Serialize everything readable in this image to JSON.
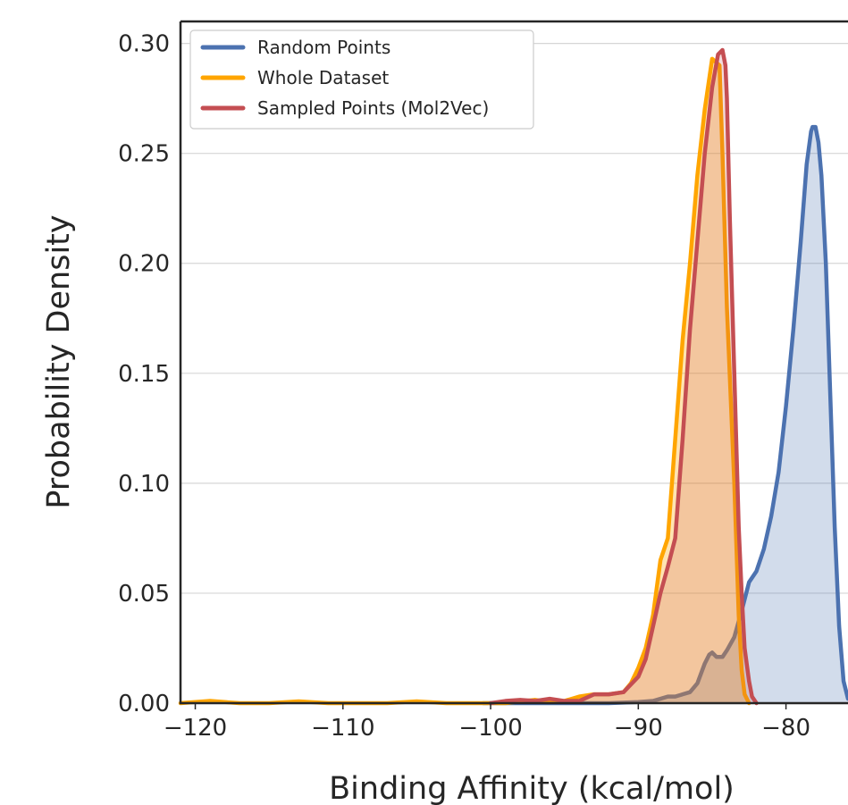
{
  "chart_data": {
    "type": "area",
    "xlabel": "Binding Affinity (kcal/mol)",
    "ylabel": "Probability Density",
    "xlim": [
      -121,
      -75.8
    ],
    "ylim": [
      0,
      0.31
    ],
    "xticks": [
      -120,
      -110,
      -100,
      -90,
      -80
    ],
    "xtick_labels": [
      "−120",
      "−110",
      "−100",
      "−90",
      "−80"
    ],
    "yticks": [
      0.0,
      0.05,
      0.1,
      0.15,
      0.2,
      0.25,
      0.3
    ],
    "ytick_labels": [
      "0.00",
      "0.05",
      "0.10",
      "0.15",
      "0.20",
      "0.25",
      "0.30"
    ],
    "grid": "horizontal",
    "legend_position": "top-left",
    "series": [
      {
        "name": "Random Points",
        "color": "#4c72b0",
        "fill": "#4c72b0",
        "fill_opacity": 0.25,
        "x": [
          -100.5,
          -92,
          -90,
          -89,
          -88,
          -87.5,
          -87,
          -86.5,
          -86,
          -85.5,
          -85.2,
          -85,
          -84.7,
          -84.3,
          -84,
          -83.5,
          -83,
          -82.5,
          -82,
          -81.5,
          -81,
          -80.5,
          -80,
          -79.5,
          -79,
          -78.6,
          -78.3,
          -78.2,
          -78,
          -77.8,
          -77.6,
          -77.3,
          -77,
          -76.7,
          -76.4,
          -76.1,
          -75.8
        ],
        "y": [
          0.0,
          0.0,
          0.0005,
          0.001,
          0.003,
          0.003,
          0.004,
          0.005,
          0.009,
          0.018,
          0.022,
          0.023,
          0.021,
          0.021,
          0.024,
          0.03,
          0.042,
          0.055,
          0.06,
          0.07,
          0.085,
          0.105,
          0.135,
          0.17,
          0.21,
          0.245,
          0.26,
          0.262,
          0.262,
          0.255,
          0.24,
          0.2,
          0.14,
          0.08,
          0.035,
          0.01,
          0.002
        ]
      },
      {
        "name": "Whole Dataset",
        "color": "#ffa500",
        "fill": "#ffa500",
        "fill_opacity": 0.3,
        "x": [
          -121,
          -120,
          -119,
          -118,
          -117,
          -115,
          -113,
          -111,
          -109,
          -107,
          -105,
          -103,
          -101,
          -99,
          -97,
          -96,
          -95,
          -94,
          -93,
          -92,
          -91,
          -90.5,
          -90,
          -89.5,
          -89,
          -88.5,
          -88,
          -87.5,
          -87,
          -86.5,
          -86,
          -85.5,
          -85,
          -84.5,
          -84.3,
          -84,
          -83.5,
          -83.2,
          -83,
          -82.8,
          -82.5
        ],
        "y": [
          0.0,
          0.0005,
          0.001,
          0.0005,
          0.0,
          0.0,
          0.0008,
          0.0,
          0.0,
          0.0,
          0.0008,
          0.0,
          0.0,
          0.0,
          0.0015,
          0.0005,
          0.001,
          0.003,
          0.004,
          0.004,
          0.005,
          0.009,
          0.016,
          0.025,
          0.04,
          0.065,
          0.075,
          0.12,
          0.165,
          0.2,
          0.24,
          0.27,
          0.293,
          0.29,
          0.25,
          0.18,
          0.1,
          0.04,
          0.015,
          0.004,
          0.0
        ]
      },
      {
        "name": "Sampled Points (Mol2Vec)",
        "color": "#c44e52",
        "fill": "#c44e52",
        "fill_opacity": 0.2,
        "x": [
          -100,
          -99,
          -98,
          -97,
          -96,
          -95,
          -94,
          -93,
          -92,
          -91,
          -90,
          -89.5,
          -89,
          -88.5,
          -88,
          -87.5,
          -87,
          -86.5,
          -86,
          -85.5,
          -85,
          -84.6,
          -84.3,
          -84.1,
          -84,
          -83.8,
          -83.5,
          -83.2,
          -83,
          -82.8,
          -82.5,
          -82.3,
          -82
        ],
        "y": [
          0.0,
          0.001,
          0.0015,
          0.001,
          0.002,
          0.001,
          0.001,
          0.004,
          0.004,
          0.005,
          0.012,
          0.02,
          0.035,
          0.05,
          0.062,
          0.075,
          0.12,
          0.17,
          0.21,
          0.25,
          0.28,
          0.295,
          0.297,
          0.29,
          0.275,
          0.22,
          0.15,
          0.08,
          0.05,
          0.025,
          0.01,
          0.003,
          0.0
        ]
      }
    ]
  }
}
